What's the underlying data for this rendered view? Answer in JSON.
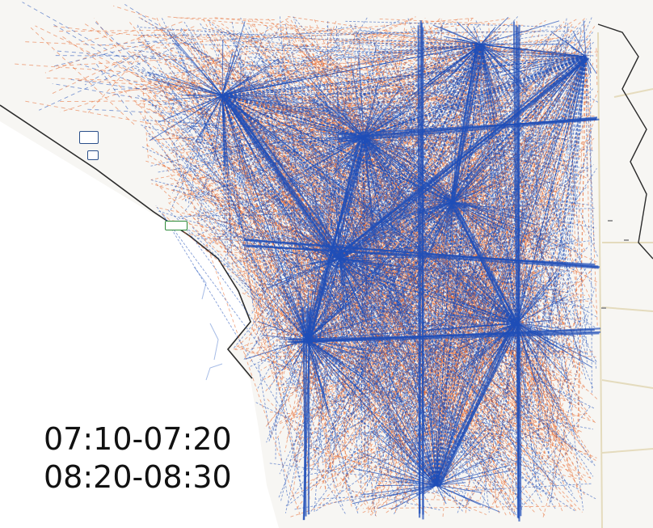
{
  "time_windows": [
    "07:10-07:20",
    "08:20-08:30"
  ],
  "colors": {
    "flow_orange": "#e8662a",
    "flow_blue": "#1f4fb8",
    "boundary": "#2b2b2b",
    "land": "#f7f6f3",
    "sea": "#ffffff"
  },
  "icons": [
    "map-pin-icon",
    "bus-stop-icon"
  ]
}
